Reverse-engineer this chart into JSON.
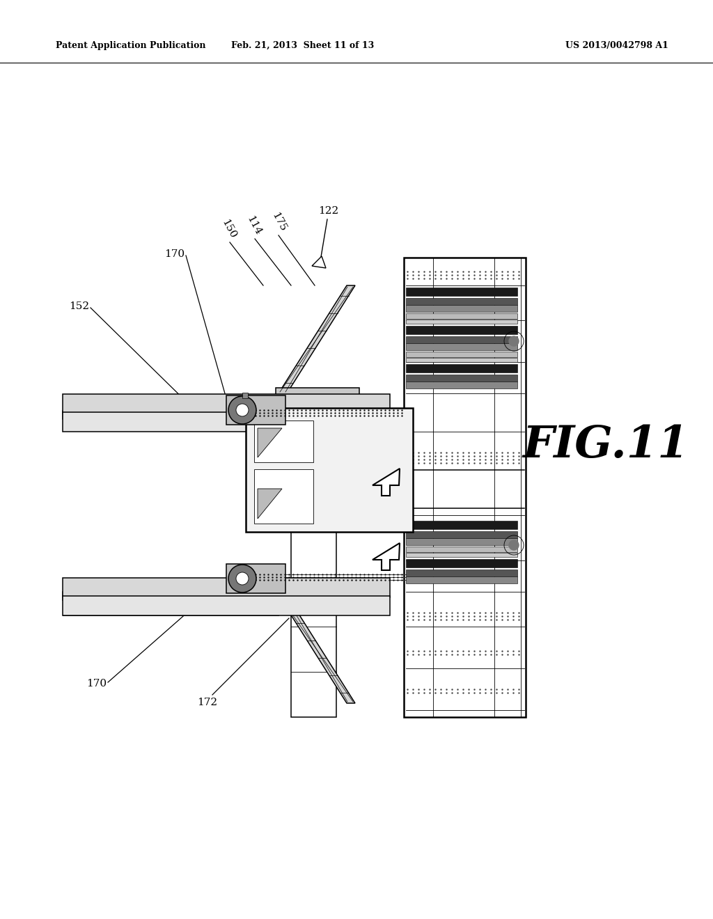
{
  "bg_color": "#ffffff",
  "header_left": "Patent Application Publication",
  "header_mid": "Feb. 21, 2013  Sheet 11 of 13",
  "header_right": "US 2013/0042798 A1",
  "fig_label": "FIG.11",
  "black": "#000000",
  "dark_gray": "#333333",
  "mid_gray": "#888888",
  "light_gray": "#e0e0e0",
  "rail_dark": "#2a2a2a",
  "rail_mid": "#666666"
}
